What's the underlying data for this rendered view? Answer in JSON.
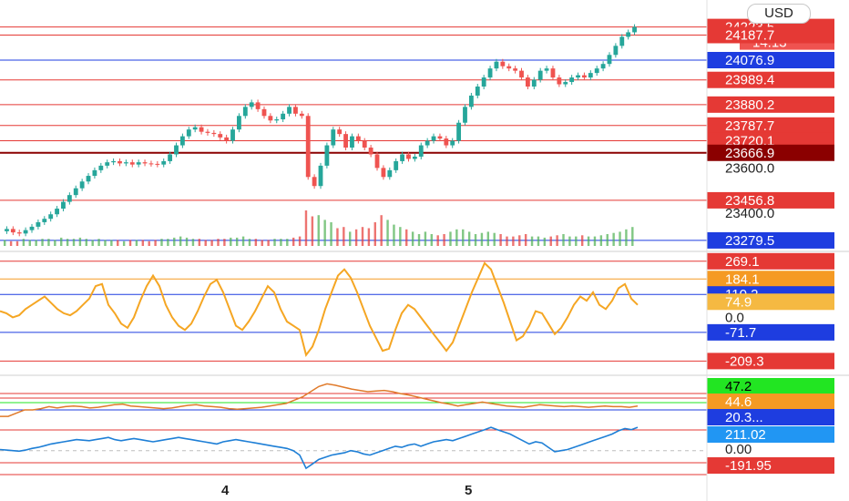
{
  "currency_label": "USD",
  "countdown": "14:13",
  "time_axis": [
    {
      "label": "4"
    },
    {
      "label": "5"
    }
  ],
  "chart_data": [
    {
      "type": "candlestick",
      "pane": "price",
      "ylim": [
        23255,
        24230
      ],
      "last_price": 24223.5,
      "levels": [
        {
          "value": 24223.5,
          "color": "#e53935",
          "label": "24223.5"
        },
        {
          "value": 24187.7,
          "color": "#e53935",
          "label": "24187.7"
        },
        {
          "value": 24076.9,
          "color": "#1e3de0",
          "label": "24076.9"
        },
        {
          "value": 23989.4,
          "color": "#e53935",
          "label": "23989.4"
        },
        {
          "value": 23880.2,
          "color": "#e53935",
          "label": "23880.2"
        },
        {
          "value": 23787.7,
          "color": "#e53935",
          "label": "23787.7"
        },
        {
          "value": 23720.1,
          "color": "#e53935",
          "label": "23720.1"
        },
        {
          "value": 23666.9,
          "color": "#8b0000",
          "label": "23666.9"
        },
        {
          "value": 23456.8,
          "color": "#e53935",
          "label": "23456.8"
        },
        {
          "value": 23279.5,
          "color": "#1e3de0",
          "label": "23279.5"
        }
      ],
      "plain_ticks": [
        "23600.0",
        "23400.0"
      ],
      "closes": [
        23330,
        23315,
        23310,
        23325,
        23340,
        23360,
        23375,
        23395,
        23420,
        23450,
        23480,
        23510,
        23540,
        23565,
        23590,
        23610,
        23625,
        23630,
        23620,
        23625,
        23615,
        23625,
        23620,
        23618,
        23615,
        23630,
        23660,
        23700,
        23740,
        23770,
        23780,
        23760,
        23755,
        23750,
        23735,
        23720,
        23770,
        23830,
        23870,
        23890,
        23860,
        23830,
        23810,
        23815,
        23840,
        23870,
        23840,
        23830,
        23560,
        23520,
        23610,
        23700,
        23770,
        23750,
        23690,
        23740,
        23720,
        23690,
        23660,
        23600,
        23560,
        23590,
        23630,
        23660,
        23640,
        23650,
        23700,
        23720,
        23740,
        23730,
        23700,
        23720,
        23800,
        23870,
        23920,
        23960,
        24000,
        24040,
        24070,
        24050,
        24040,
        24030,
        24000,
        23960,
        23990,
        24030,
        24040,
        24000,
        23970,
        23980,
        24000,
        24010,
        24000,
        24020,
        24040,
        24060,
        24100,
        24140,
        24180,
        24200,
        24223.5
      ],
      "volumes": [
        5,
        4,
        4,
        6,
        5,
        5,
        6,
        6,
        5,
        7,
        6,
        6,
        7,
        6,
        5,
        6,
        5,
        5,
        5,
        4,
        5,
        5,
        5,
        4,
        5,
        6,
        6,
        7,
        8,
        7,
        6,
        6,
        5,
        5,
        6,
        6,
        7,
        7,
        8,
        6,
        6,
        5,
        5,
        6,
        6,
        6,
        7,
        8,
        30,
        25,
        26,
        22,
        20,
        15,
        16,
        12,
        14,
        16,
        15,
        20,
        26,
        22,
        18,
        16,
        14,
        12,
        10,
        12,
        10,
        9,
        10,
        12,
        14,
        14,
        12,
        10,
        11,
        12,
        11,
        10,
        8,
        8,
        9,
        10,
        8,
        8,
        7,
        8,
        9,
        10,
        8,
        8,
        9,
        8,
        8,
        9,
        10,
        11,
        12,
        14,
        16
      ]
    },
    {
      "type": "line",
      "pane": "oscillator",
      "series": [
        {
          "color": "#f5a623",
          "values": [
            30,
            20,
            0,
            10,
            40,
            60,
            80,
            100,
            70,
            40,
            20,
            10,
            30,
            60,
            90,
            150,
            160,
            60,
            20,
            -30,
            -50,
            0,
            80,
            150,
            200,
            150,
            60,
            0,
            -40,
            -60,
            -30,
            30,
            100,
            160,
            180,
            120,
            40,
            -40,
            -60,
            -20,
            30,
            90,
            150,
            120,
            40,
            -20,
            -40,
            -60,
            -180,
            -140,
            -60,
            40,
            120,
            200,
            230,
            190,
            120,
            40,
            -40,
            -100,
            -160,
            -150,
            -60,
            20,
            60,
            40,
            0,
            -40,
            -80,
            -120,
            -160,
            -120,
            -40,
            40,
            120,
            190,
            260,
            230,
            150,
            70,
            -20,
            -110,
            -90,
            -40,
            30,
            20,
            -30,
            -80,
            -50,
            0,
            60,
            100,
            80,
            120,
            60,
            40,
            80,
            140,
            160,
            90,
            60
          ]
        }
      ],
      "ylim": [
        -260,
        290
      ],
      "levels": [
        {
          "value": 269.1,
          "color": "#e53935",
          "label": "269.1"
        },
        {
          "value": 184.1,
          "color": "#f59a23",
          "label": "184.1"
        },
        {
          "value": 110.2,
          "color": "#1e3de0",
          "label": "110.2"
        },
        {
          "value": 74.9,
          "color": "#f5b942",
          "label": "74.9"
        },
        {
          "value": 0,
          "color": "#ffffff",
          "label": "0.0"
        },
        {
          "value": -71.7,
          "color": "#1e3de0",
          "label": "-71.7"
        },
        {
          "value": -209.3,
          "color": "#e53935",
          "label": "-209.3"
        }
      ]
    },
    {
      "type": "line",
      "pane": "strength",
      "series": [
        {
          "color": "#e07a2a",
          "values": [
            43,
            43,
            43.5,
            44,
            44,
            44.2,
            44.5,
            44.3,
            44.5,
            44.6,
            44.5,
            44.3,
            44.4,
            44.6,
            44.8,
            44.9,
            44.6,
            44.5,
            44.4,
            44.3,
            44.2,
            44.3,
            44.5,
            44.7,
            44.8,
            44.6,
            44.5,
            44.4,
            44.2,
            44.1,
            44.2,
            44.3,
            44.4,
            44.6,
            44.8,
            45,
            45.5,
            46,
            46.8,
            47.6,
            48,
            47.8,
            47.5,
            47.2,
            47,
            46.8,
            46.9,
            47,
            46.8,
            46.5,
            46.3,
            46,
            45.7,
            45.4,
            45.1,
            44.9,
            44.6,
            44.8,
            45,
            45.2,
            45,
            44.8,
            44.6,
            44.5,
            44.4,
            44.6,
            44.8,
            44.7,
            44.6,
            44.5,
            44.6,
            44.5,
            44.4,
            44.5,
            44.6,
            44.5,
            44.5,
            44.4,
            44.6
          ]
        }
      ],
      "ylim": [
        42.6,
        48.2
      ],
      "levels": [
        {
          "value": 47.2,
          "color": "#e53935",
          "label": "47.2"
        },
        {
          "value": 44.6,
          "color": "#e07a2a",
          "label": "44.6"
        }
      ],
      "extra_tags": [
        {
          "color": "#22e522",
          "label": "47.2"
        },
        {
          "color": "#1e3de0",
          "label": "20.3..."
        }
      ]
    },
    {
      "type": "line",
      "pane": "momentum",
      "series": [
        {
          "color": "#1e7fd6",
          "values": [
            10,
            5,
            0,
            -5,
            5,
            20,
            30,
            45,
            60,
            70,
            80,
            90,
            100,
            95,
            90,
            100,
            110,
            120,
            100,
            90,
            100,
            110,
            100,
            90,
            80,
            90,
            100,
            110,
            120,
            110,
            100,
            90,
            80,
            70,
            60,
            80,
            90,
            100,
            90,
            80,
            70,
            60,
            50,
            40,
            30,
            20,
            0,
            -40,
            -160,
            -120,
            -80,
            -60,
            -40,
            -30,
            -20,
            0,
            -10,
            -30,
            -40,
            -20,
            0,
            20,
            40,
            30,
            50,
            60,
            40,
            60,
            80,
            90,
            100,
            90,
            110,
            130,
            150,
            170,
            190,
            211,
            190,
            170,
            150,
            120,
            90,
            60,
            80,
            70,
            30,
            -10,
            0,
            10,
            30,
            50,
            70,
            90,
            110,
            130,
            150,
            180,
            200,
            190,
            211.02
          ]
        }
      ],
      "ylim": [
        -250,
        270
      ],
      "levels": [
        {
          "value": 211.02,
          "color": "#2196f3",
          "label": "211.02"
        },
        {
          "value": 0,
          "color": "#ffffff",
          "label": "0.00"
        },
        {
          "value": -191.95,
          "color": "#e53935",
          "label": "-191.95"
        }
      ]
    }
  ]
}
